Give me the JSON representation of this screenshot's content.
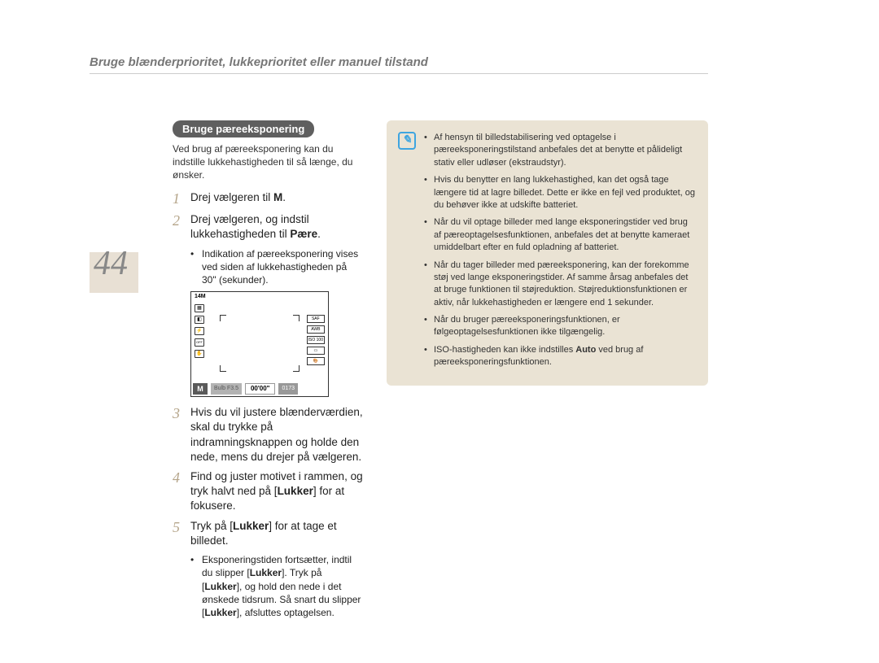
{
  "page_number": "44",
  "title": "Bruge blænderprioritet, lukkeprioritet eller manuel tilstand",
  "section_heading": "Bruge pæreeksponering",
  "intro": "Ved brug af pæreeksponering kan du indstille lukkehastigheden til så længe, du ønsker.",
  "steps": {
    "s1": {
      "num": "1",
      "text_pre": "Drej vælgeren til ",
      "bold": "M",
      "text_post": "."
    },
    "s2": {
      "num": "2",
      "text_pre": "Drej vælgeren, og indstil lukkehastigheden til ",
      "bold": "Pære",
      "text_post": "."
    },
    "s2_sub": "Indikation af pæreeksponering vises ved siden af lukkehastigheden på 30\" (sekunder).",
    "s3": {
      "num": "3",
      "text": "Hvis du vil justere blænderværdien, skal du trykke på indramningsknappen og holde den nede, mens du drejer på vælgeren."
    },
    "s4": {
      "num": "4",
      "text_pre": "Find og juster motivet i rammen, og tryk halvt ned på [",
      "bold": "Lukker",
      "text_post": "] for at fokusere."
    },
    "s5": {
      "num": "5",
      "text_pre": "Tryk på [",
      "bold": "Lukker",
      "text_post": "] for at tage et billedet."
    },
    "s5_sub_a": "Eksponeringstiden fortsætter, indtil du slipper [",
    "s5_sub_b": "Lukker",
    "s5_sub_c": "]. Tryk på [",
    "s5_sub_d": "Lukker",
    "s5_sub_e": "], og hold den nede i det ønskede tidsrum. Så snart du slipper [",
    "s5_sub_f": "Lukker",
    "s5_sub_g": "], afsluttes optagelsen."
  },
  "lcd": {
    "resolution": "14M",
    "mode": "M",
    "bulb": "Bulb F3.5",
    "time": "00'00\"",
    "count": "0173",
    "saf": "SAF",
    "awb": "AWB",
    "iso": "ISO 100"
  },
  "notes": {
    "n1": "Af hensyn til billedstabilisering ved optagelse i pæreeksponeringstilstand anbefales det at benytte et pålideligt stativ eller udløser (ekstraudstyr).",
    "n2": "Hvis du benytter en lang lukkehastighed, kan det også tage længere tid at lagre billedet. Dette er ikke en fejl ved produktet, og du behøver ikke at udskifte batteriet.",
    "n3": "Når du vil optage billeder med lange eksponeringstider ved brug af pæreoptagelsesfunktionen, anbefales det at benytte kameraet umiddelbart efter en fuld opladning af batteriet.",
    "n4": "Når du tager billeder med pæreeksponering, kan der forekomme støj ved lange eksponeringstider. Af samme årsag anbefales det at bruge funktionen til støjreduktion. Støjreduktionsfunktionen er aktiv, når lukkehastigheden er længere end 1 sekunder.",
    "n5": "Når du bruger pæreeksponeringsfunktionen, er følgeoptagelsesfunktionen ikke tilgængelig.",
    "n6_a": "ISO-hastigheden kan ikke indstilles ",
    "n6_b": "Auto",
    "n6_c": " ved brug af pæreeksponeringsfunktionen."
  },
  "colors": {
    "accent": "#b5a58a",
    "note_bg": "#eae3d4",
    "note_icon": "#3ea5e0",
    "pill_bg": "#5f5f5f"
  }
}
